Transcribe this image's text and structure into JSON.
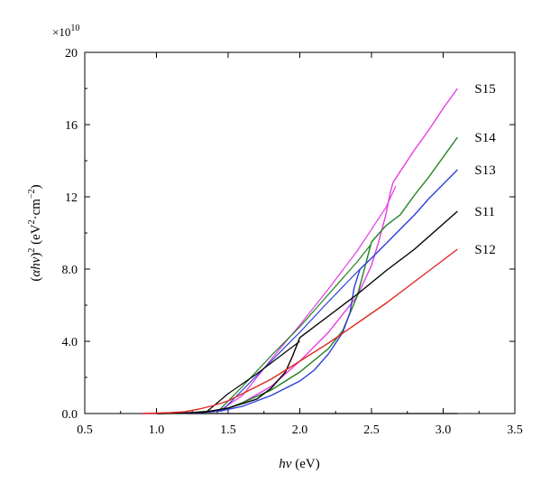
{
  "chart_data": {
    "type": "line",
    "multiplier": {
      "base": "×10",
      "exponent": "10"
    },
    "xlabel": {
      "italic": "hν",
      "rest": " (eV)"
    },
    "ylabel": {
      "parts": [
        {
          "t": "(",
          "style": "normal"
        },
        {
          "t": "αhν",
          "style": "italic"
        },
        {
          "t": ")",
          "style": "normal"
        },
        {
          "t": "2",
          "style": "sup"
        },
        {
          "t": " (eV",
          "style": "normal"
        },
        {
          "t": "2",
          "style": "sup"
        },
        {
          "t": "·cm",
          "style": "normal"
        },
        {
          "t": "−2",
          "style": "sup"
        },
        {
          "t": ")",
          "style": "normal"
        }
      ]
    },
    "xlim": [
      0.5,
      3.5
    ],
    "ylim": [
      0,
      20
    ],
    "x_ticks": [
      "0.5",
      "1.0",
      "1.5",
      "2.0",
      "2.5",
      "3.0",
      "3.5"
    ],
    "x_tick_values": [
      0.5,
      1.0,
      1.5,
      2.0,
      2.5,
      3.0,
      3.5
    ],
    "y_ticks": [
      "0.0",
      "4.0",
      "8.0",
      "12",
      "16",
      "20"
    ],
    "y_tick_values": [
      0,
      4,
      8,
      12,
      16,
      20
    ],
    "grid": false,
    "series": [
      {
        "label": "S15",
        "color": "#e63ce6",
        "label_at": [
          3.1,
          18.0
        ],
        "points": [
          [
            0.9,
            0.0
          ],
          [
            1.2,
            0.02
          ],
          [
            1.4,
            0.1
          ],
          [
            1.5,
            0.3
          ],
          [
            1.6,
            0.6
          ],
          [
            1.8,
            1.5
          ],
          [
            2.0,
            2.9
          ],
          [
            2.2,
            4.5
          ],
          [
            2.4,
            6.5
          ],
          [
            2.5,
            8.2
          ],
          [
            2.55,
            9.5
          ],
          [
            2.6,
            11.0
          ],
          [
            2.63,
            12.2
          ],
          [
            2.65,
            12.8
          ],
          [
            2.7,
            13.4
          ],
          [
            2.8,
            14.6
          ],
          [
            2.9,
            15.7
          ],
          [
            3.0,
            16.9
          ],
          [
            3.1,
            18.0
          ]
        ],
        "extra_paths": [
          [
            [
              1.42,
              0.05
            ],
            [
              1.6,
              1.0
            ],
            [
              1.8,
              3.0
            ],
            [
              2.0,
              4.9
            ],
            [
              2.2,
              6.9
            ],
            [
              2.4,
              9.0
            ],
            [
              2.6,
              11.4
            ],
            [
              2.67,
              12.6
            ]
          ]
        ]
      },
      {
        "label": "S14",
        "color": "#1f7f1f",
        "label_at": [
          3.1,
          15.3
        ],
        "points": [
          [
            1.0,
            0.0
          ],
          [
            1.2,
            0.03
          ],
          [
            1.4,
            0.15
          ],
          [
            1.5,
            0.3
          ],
          [
            1.6,
            0.6
          ],
          [
            1.8,
            1.3
          ],
          [
            2.0,
            2.3
          ],
          [
            2.2,
            3.6
          ],
          [
            2.3,
            4.6
          ],
          [
            2.4,
            6.5
          ],
          [
            2.45,
            8.0
          ],
          [
            2.5,
            9.5
          ],
          [
            2.6,
            10.4
          ],
          [
            2.7,
            11.0
          ],
          [
            2.8,
            12.1
          ],
          [
            2.9,
            13.1
          ],
          [
            3.0,
            14.2
          ],
          [
            3.1,
            15.3
          ]
        ],
        "extra_paths": [
          [
            [
              1.42,
              0.05
            ],
            [
              1.6,
              1.5
            ],
            [
              1.8,
              3.2
            ],
            [
              2.0,
              4.8
            ],
            [
              2.2,
              6.6
            ],
            [
              2.4,
              8.4
            ],
            [
              2.5,
              9.4
            ]
          ]
        ]
      },
      {
        "label": "S13",
        "color": "#2a3fd9",
        "label_at": [
          3.1,
          13.5
        ],
        "points": [
          [
            1.0,
            0.0
          ],
          [
            1.3,
            0.05
          ],
          [
            1.45,
            0.15
          ],
          [
            1.6,
            0.4
          ],
          [
            1.8,
            1.0
          ],
          [
            2.0,
            1.8
          ],
          [
            2.1,
            2.4
          ],
          [
            2.2,
            3.3
          ],
          [
            2.3,
            4.5
          ],
          [
            2.35,
            5.6
          ],
          [
            2.38,
            7.0
          ],
          [
            2.42,
            8.0
          ],
          [
            2.5,
            8.6
          ],
          [
            2.6,
            9.4
          ],
          [
            2.7,
            10.2
          ],
          [
            2.8,
            11.0
          ],
          [
            2.9,
            11.9
          ],
          [
            3.0,
            12.7
          ],
          [
            3.1,
            13.5
          ]
        ],
        "extra_paths": [
          [
            [
              1.45,
              0.1
            ],
            [
              1.6,
              1.3
            ],
            [
              1.8,
              2.9
            ],
            [
              2.0,
              4.5
            ],
            [
              2.2,
              6.2
            ],
            [
              2.42,
              8.0
            ]
          ]
        ]
      },
      {
        "label": "S11",
        "color": "#000000",
        "label_at": [
          3.1,
          11.2
        ],
        "points": [
          [
            1.0,
            0.0
          ],
          [
            1.2,
            0.03
          ],
          [
            1.35,
            0.1
          ],
          [
            1.5,
            0.3
          ],
          [
            1.7,
            0.8
          ],
          [
            1.8,
            1.4
          ],
          [
            1.9,
            2.3
          ],
          [
            1.95,
            3.2
          ],
          [
            2.0,
            4.2
          ],
          [
            2.2,
            5.4
          ],
          [
            2.4,
            6.6
          ],
          [
            2.6,
            7.9
          ],
          [
            2.8,
            9.1
          ],
          [
            3.0,
            10.5
          ],
          [
            3.1,
            11.2
          ]
        ],
        "extra_paths": [
          [
            [
              1.35,
              0.1
            ],
            [
              1.5,
              1.1
            ],
            [
              1.7,
              2.2
            ],
            [
              1.9,
              3.4
            ],
            [
              2.0,
              4.0
            ]
          ]
        ]
      },
      {
        "label": "S12",
        "color": "#e0281e",
        "label_at": [
          3.1,
          9.1
        ],
        "points": [
          [
            0.9,
            0.0
          ],
          [
            1.1,
            0.05
          ],
          [
            1.2,
            0.1
          ],
          [
            1.3,
            0.25
          ],
          [
            1.4,
            0.45
          ],
          [
            1.5,
            0.7
          ],
          [
            1.6,
            1.1
          ],
          [
            1.8,
            1.9
          ],
          [
            2.0,
            2.9
          ],
          [
            2.2,
            3.9
          ],
          [
            2.4,
            5.0
          ],
          [
            2.6,
            6.1
          ],
          [
            2.8,
            7.3
          ],
          [
            3.0,
            8.5
          ],
          [
            3.1,
            9.1
          ]
        ],
        "extra_paths": []
      }
    ]
  }
}
